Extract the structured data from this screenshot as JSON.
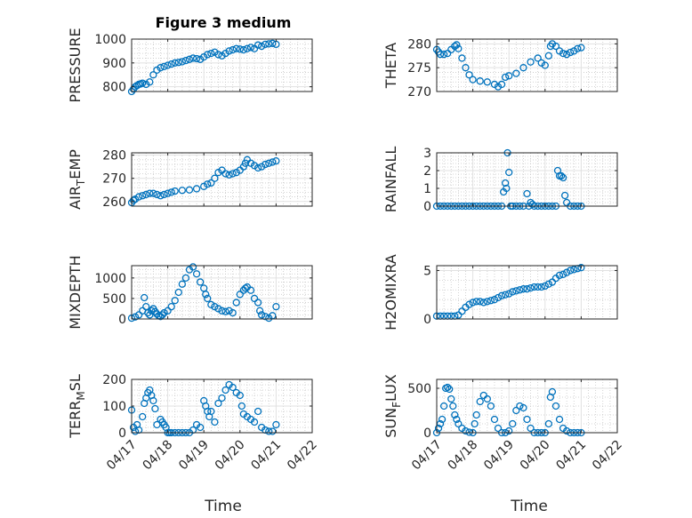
{
  "figure": {
    "title": "Figure 3 medium"
  },
  "chart_data": [
    {
      "type": "scatter",
      "ylabel": "PRESSURE",
      "ylim": [
        780,
        1000
      ],
      "yticks": [
        "800",
        "900",
        "1000"
      ],
      "grid": true,
      "series": [
        {
          "marker": "circle",
          "color": "#0072bd",
          "x": [
            0.0,
            0.05,
            0.1,
            0.15,
            0.2,
            0.25,
            0.3,
            0.4,
            0.5,
            0.6,
            0.7,
            0.8,
            0.9,
            1.0,
            1.1,
            1.2,
            1.3,
            1.4,
            1.5,
            1.6,
            1.7,
            1.8,
            1.9,
            2.0,
            2.1,
            2.2,
            2.3,
            2.4,
            2.5,
            2.6,
            2.7,
            2.8,
            2.9,
            3.0,
            3.1,
            3.2,
            3.3,
            3.4,
            3.5,
            3.6,
            3.7,
            3.8,
            3.9,
            4.0
          ],
          "y": [
            780,
            790,
            800,
            805,
            810,
            812,
            815,
            810,
            820,
            850,
            870,
            880,
            885,
            890,
            895,
            900,
            902,
            905,
            910,
            915,
            920,
            918,
            915,
            925,
            935,
            940,
            945,
            935,
            930,
            940,
            950,
            955,
            960,
            958,
            955,
            960,
            965,
            960,
            975,
            970,
            978,
            980,
            982,
            978
          ]
        }
      ]
    },
    {
      "type": "scatter",
      "ylabel": "THETA",
      "ylim": [
        270,
        281
      ],
      "yticks": [
        "270",
        "275",
        "280"
      ],
      "grid": true,
      "series": [
        {
          "marker": "circle",
          "color": "#0072bd",
          "x": [
            0.0,
            0.05,
            0.1,
            0.2,
            0.3,
            0.4,
            0.5,
            0.55,
            0.6,
            0.7,
            0.8,
            0.9,
            1.0,
            1.2,
            1.4,
            1.6,
            1.7,
            1.8,
            1.9,
            2.0,
            2.2,
            2.4,
            2.6,
            2.8,
            2.9,
            3.0,
            3.1,
            3.15,
            3.2,
            3.3,
            3.4,
            3.5,
            3.6,
            3.7,
            3.8,
            3.9,
            4.0
          ],
          "y": [
            278.8,
            278.3,
            277.8,
            277.8,
            278.0,
            278.8,
            279.5,
            279.8,
            279.0,
            277.0,
            275.0,
            273.5,
            272.5,
            272.2,
            272.0,
            271.5,
            271.0,
            271.5,
            273.0,
            273.3,
            273.8,
            275.0,
            276.2,
            277.0,
            276.0,
            275.5,
            277.5,
            279.5,
            280.0,
            279.5,
            278.5,
            278.0,
            277.8,
            278.2,
            278.5,
            279.0,
            279.2
          ]
        }
      ]
    },
    {
      "type": "scatter",
      "ylabel": "AIR_TEMP",
      "ylim": [
        258,
        281
      ],
      "yticks": [
        "260",
        "270",
        "280"
      ],
      "grid": true,
      "series": [
        {
          "marker": "circle",
          "color": "#0072bd",
          "x": [
            0.0,
            0.05,
            0.1,
            0.2,
            0.3,
            0.4,
            0.5,
            0.6,
            0.7,
            0.8,
            0.9,
            1.0,
            1.1,
            1.2,
            1.4,
            1.6,
            1.8,
            2.0,
            2.1,
            2.2,
            2.3,
            2.4,
            2.5,
            2.6,
            2.7,
            2.8,
            2.9,
            3.0,
            3.1,
            3.15,
            3.2,
            3.3,
            3.4,
            3.5,
            3.6,
            3.7,
            3.8,
            3.9,
            4.0
          ],
          "y": [
            259.5,
            260.5,
            261.0,
            262.0,
            262.5,
            263.0,
            263.5,
            263.5,
            263.0,
            262.5,
            263.0,
            263.5,
            264.0,
            264.5,
            264.8,
            265.0,
            265.5,
            266.5,
            267.5,
            268.0,
            270.0,
            272.5,
            273.5,
            272.0,
            271.5,
            272.0,
            272.5,
            273.5,
            275.0,
            276.5,
            278.0,
            276.5,
            275.5,
            274.5,
            275.0,
            276.0,
            276.5,
            277.0,
            277.5
          ]
        }
      ]
    },
    {
      "type": "scatter",
      "ylabel": "RAINFALL",
      "ylim": [
        0,
        3
      ],
      "yticks": [
        "0",
        "1",
        "2",
        "3"
      ],
      "grid": true,
      "series": [
        {
          "marker": "circle",
          "color": "#0072bd",
          "x": [
            0.0,
            0.1,
            0.2,
            0.3,
            0.4,
            0.5,
            0.6,
            0.7,
            0.8,
            0.9,
            1.0,
            1.1,
            1.2,
            1.3,
            1.4,
            1.5,
            1.6,
            1.7,
            1.8,
            1.85,
            1.9,
            1.93,
            1.96,
            2.0,
            2.05,
            2.1,
            2.2,
            2.3,
            2.4,
            2.5,
            2.55,
            2.6,
            2.65,
            2.7,
            2.8,
            2.9,
            3.0,
            3.1,
            3.2,
            3.3,
            3.35,
            3.4,
            3.45,
            3.5,
            3.55,
            3.6,
            3.7,
            3.8,
            3.9,
            4.0
          ],
          "y": [
            0,
            0,
            0,
            0,
            0,
            0,
            0,
            0,
            0,
            0,
            0,
            0,
            0,
            0,
            0,
            0,
            0,
            0,
            0,
            0.8,
            1.3,
            1.0,
            3.0,
            1.9,
            0,
            0,
            0,
            0,
            0,
            0.7,
            0,
            0.2,
            0.1,
            0,
            0,
            0,
            0,
            0,
            0,
            0,
            2.0,
            1.7,
            1.7,
            1.6,
            0.6,
            0.2,
            0,
            0,
            0,
            0
          ]
        }
      ]
    },
    {
      "type": "scatter",
      "ylabel": "MIXDEPTH",
      "ylim": [
        0,
        1300
      ],
      "yticks": [
        "0",
        "500",
        "1000"
      ],
      "grid": true,
      "series": [
        {
          "marker": "circle",
          "color": "#0072bd",
          "x": [
            0.0,
            0.1,
            0.2,
            0.3,
            0.35,
            0.4,
            0.45,
            0.5,
            0.55,
            0.6,
            0.65,
            0.7,
            0.75,
            0.8,
            0.85,
            0.9,
            1.0,
            1.1,
            1.2,
            1.3,
            1.4,
            1.5,
            1.6,
            1.7,
            1.8,
            1.9,
            2.0,
            2.05,
            2.1,
            2.2,
            2.3,
            2.4,
            2.5,
            2.6,
            2.7,
            2.8,
            2.9,
            3.0,
            3.1,
            3.15,
            3.2,
            3.3,
            3.4,
            3.5,
            3.55,
            3.6,
            3.7,
            3.8,
            3.9,
            4.0
          ],
          "y": [
            20,
            50,
            100,
            200,
            520,
            300,
            150,
            100,
            200,
            250,
            180,
            120,
            80,
            60,
            100,
            150,
            200,
            300,
            450,
            650,
            850,
            1000,
            1200,
            1270,
            1100,
            900,
            750,
            600,
            500,
            350,
            300,
            250,
            200,
            180,
            200,
            150,
            400,
            600,
            700,
            750,
            780,
            700,
            500,
            400,
            200,
            100,
            60,
            20,
            80,
            300
          ]
        }
      ]
    },
    {
      "type": "scatter",
      "ylabel": "H2OMIXRA",
      "ylim": [
        0,
        5.5
      ],
      "yticks": [
        "0",
        "5"
      ],
      "grid": true,
      "series": [
        {
          "marker": "circle",
          "color": "#0072bd",
          "x": [
            0.0,
            0.1,
            0.2,
            0.3,
            0.4,
            0.5,
            0.6,
            0.7,
            0.8,
            0.9,
            1.0,
            1.1,
            1.2,
            1.3,
            1.4,
            1.5,
            1.6,
            1.7,
            1.8,
            1.9,
            2.0,
            2.1,
            2.2,
            2.3,
            2.4,
            2.5,
            2.6,
            2.7,
            2.8,
            2.9,
            3.0,
            3.1,
            3.2,
            3.3,
            3.4,
            3.5,
            3.6,
            3.7,
            3.8,
            3.9,
            4.0
          ],
          "y": [
            0.3,
            0.3,
            0.3,
            0.3,
            0.3,
            0.3,
            0.4,
            0.8,
            1.2,
            1.5,
            1.7,
            1.8,
            1.8,
            1.7,
            1.8,
            1.9,
            2.0,
            2.2,
            2.4,
            2.5,
            2.6,
            2.8,
            2.9,
            3.0,
            3.1,
            3.1,
            3.2,
            3.3,
            3.3,
            3.3,
            3.4,
            3.6,
            3.8,
            4.2,
            4.5,
            4.6,
            4.8,
            5.0,
            5.1,
            5.2,
            5.3
          ]
        }
      ]
    },
    {
      "type": "scatter",
      "ylabel": "TERR_MSL",
      "ylim": [
        0,
        200
      ],
      "yticks": [
        "0",
        "100",
        "200"
      ],
      "grid": true,
      "series": [
        {
          "marker": "circle",
          "color": "#0072bd",
          "x": [
            0.0,
            0.05,
            0.1,
            0.15,
            0.2,
            0.3,
            0.35,
            0.4,
            0.45,
            0.5,
            0.55,
            0.6,
            0.65,
            0.7,
            0.8,
            0.85,
            0.9,
            0.95,
            1.0,
            1.05,
            1.1,
            1.2,
            1.3,
            1.4,
            1.5,
            1.6,
            1.7,
            1.8,
            1.9,
            2.0,
            2.05,
            2.1,
            2.15,
            2.2,
            2.3,
            2.4,
            2.5,
            2.6,
            2.7,
            2.8,
            2.9,
            3.0,
            3.05,
            3.1,
            3.2,
            3.3,
            3.4,
            3.5,
            3.6,
            3.7,
            3.8,
            3.9,
            4.0
          ],
          "y": [
            85,
            20,
            5,
            30,
            10,
            60,
            110,
            130,
            150,
            160,
            140,
            120,
            90,
            30,
            50,
            40,
            30,
            20,
            0,
            0,
            0,
            0,
            0,
            0,
            0,
            0,
            10,
            30,
            20,
            120,
            100,
            80,
            60,
            80,
            40,
            110,
            130,
            160,
            180,
            170,
            150,
            140,
            100,
            70,
            60,
            50,
            40,
            80,
            20,
            10,
            5,
            5,
            30
          ]
        }
      ]
    },
    {
      "type": "scatter",
      "ylabel": "SUN_FLUX",
      "ylim": [
        0,
        600
      ],
      "yticks": [
        "0",
        "500"
      ],
      "grid": true,
      "series": [
        {
          "marker": "circle",
          "color": "#0072bd",
          "x": [
            0.0,
            0.05,
            0.1,
            0.15,
            0.2,
            0.25,
            0.3,
            0.35,
            0.4,
            0.45,
            0.5,
            0.55,
            0.6,
            0.7,
            0.8,
            0.9,
            1.0,
            1.05,
            1.1,
            1.2,
            1.3,
            1.4,
            1.5,
            1.6,
            1.7,
            1.8,
            1.9,
            2.0,
            2.1,
            2.2,
            2.3,
            2.4,
            2.5,
            2.6,
            2.7,
            2.8,
            2.9,
            3.0,
            3.1,
            3.15,
            3.2,
            3.3,
            3.4,
            3.5,
            3.6,
            3.7,
            3.8,
            3.9,
            4.0
          ],
          "y": [
            0,
            50,
            100,
            150,
            300,
            500,
            510,
            490,
            380,
            300,
            200,
            150,
            100,
            50,
            20,
            5,
            0,
            100,
            200,
            350,
            420,
            380,
            300,
            150,
            50,
            0,
            0,
            20,
            100,
            250,
            300,
            280,
            150,
            50,
            0,
            0,
            0,
            0,
            100,
            400,
            460,
            300,
            150,
            50,
            20,
            0,
            0,
            0,
            0
          ]
        }
      ]
    }
  ],
  "xaxis": {
    "ticks": [
      "04/17",
      "04/18",
      "04/19",
      "04/20",
      "04/21",
      "04/22"
    ],
    "label": "Time"
  }
}
